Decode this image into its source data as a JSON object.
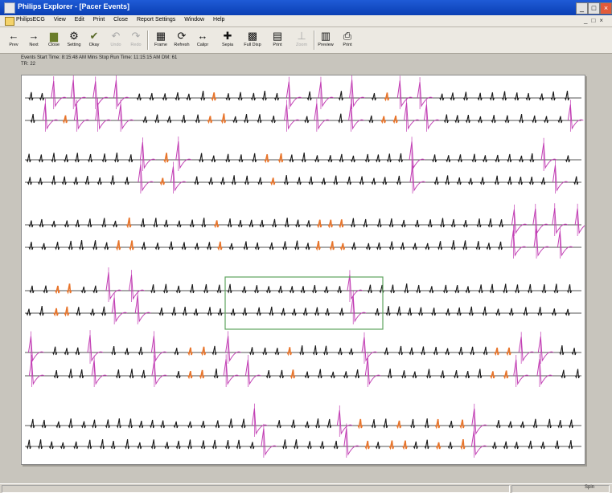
{
  "window": {
    "title": "Philips Explorer - [Pacer Events]",
    "controls": [
      "_",
      "□",
      "×"
    ]
  },
  "menu": {
    "items": [
      "PhilipsECG",
      "View",
      "Edit",
      "Print",
      "Close",
      "Report Settings",
      "Window",
      "Help"
    ],
    "mdi_controls": "_□×"
  },
  "toolbar": {
    "buttons": [
      {
        "label": "Prev",
        "icon": "left-arrow-icon",
        "glyph": "←",
        "enabled": true
      },
      {
        "label": "Next",
        "icon": "right-arrow-icon",
        "glyph": "→",
        "enabled": true
      },
      {
        "label": "Close",
        "icon": "folder-close-icon",
        "glyph": "▆",
        "enabled": true
      },
      {
        "label": "Setting",
        "icon": "settings-icon",
        "glyph": "⚙",
        "enabled": true
      },
      {
        "label": "Okay",
        "icon": "check-icon",
        "glyph": "✔",
        "enabled": true
      },
      {
        "label": "Undo",
        "icon": "undo-icon",
        "glyph": "↶",
        "enabled": false
      },
      {
        "label": "Redo",
        "icon": "redo-icon",
        "glyph": "↷",
        "enabled": false
      },
      {
        "label": "Frame",
        "icon": "frame-icon",
        "glyph": "▦",
        "enabled": true
      },
      {
        "label": "Refresh",
        "icon": "refresh-icon",
        "glyph": "⟳",
        "enabled": true
      },
      {
        "label": "Calipr",
        "icon": "caliper-icon",
        "glyph": "↔",
        "enabled": true
      },
      {
        "label": "Sepia",
        "icon": "grid-icon",
        "glyph": "✚",
        "enabled": true
      },
      {
        "label": "Full Disp",
        "icon": "full-display-icon",
        "glyph": "▩",
        "enabled": true
      },
      {
        "label": "Print",
        "icon": "layout-icon",
        "glyph": "▤",
        "enabled": true
      },
      {
        "label": "Zoom",
        "icon": "zoom-icon",
        "glyph": "⊥",
        "enabled": false
      },
      {
        "label": "Preview",
        "icon": "preview-icon",
        "glyph": "▥",
        "enabled": true
      },
      {
        "label": "Print",
        "icon": "printer-icon",
        "glyph": "⎙",
        "enabled": true
      }
    ]
  },
  "strip_info": {
    "line1": "Events Start Time: 8:15:48 AM Mins    Stop Run Time: 11:15:15 AM  DM: 61",
    "line2": "TR: 22"
  },
  "status": {
    "text": "Spin"
  },
  "colors": {
    "trace_normal": "#1a1a1a",
    "trace_paced": "#e8742a",
    "trace_ectopic": "#c23fb4",
    "selection_box": "#5ea45e",
    "title_bar": "#0a3fb4"
  }
}
